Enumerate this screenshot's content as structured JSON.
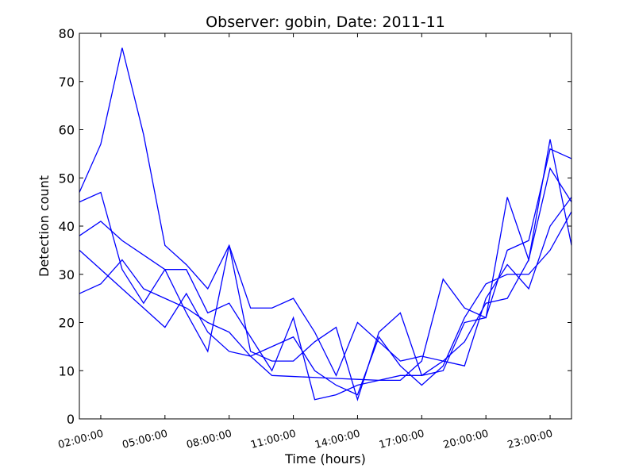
{
  "chart_data": {
    "type": "line",
    "title": "Observer: gobin, Date: 2011-11",
    "xlabel": "Time (hours)",
    "ylabel": "Detection count",
    "xlim": [
      "01:00:00",
      "24:00:00"
    ],
    "ylim": [
      0,
      80
    ],
    "yticks": [
      0,
      10,
      20,
      30,
      40,
      50,
      60,
      70,
      80
    ],
    "xticks": [
      "02:00:00",
      "05:00:00",
      "08:00:00",
      "11:00:00",
      "14:00:00",
      "17:00:00",
      "20:00:00",
      "23:00:00"
    ],
    "grid": false,
    "line_color": "#0000ff",
    "x": [
      "01:00:00",
      "02:00:00",
      "03:00:00",
      "04:00:00",
      "05:00:00",
      "06:00:00",
      "07:00:00",
      "08:00:00",
      "09:00:00",
      "10:00:00",
      "11:00:00",
      "12:00:00",
      "13:00:00",
      "14:00:00",
      "15:00:00",
      "16:00:00",
      "17:00:00",
      "18:00:00",
      "19:00:00",
      "20:00:00",
      "21:00:00",
      "22:00:00",
      "23:00:00",
      "24:00:00"
    ],
    "series": [
      {
        "values": [
          47,
          57,
          77,
          59,
          36,
          32,
          27,
          36,
          23,
          23,
          25,
          18,
          9,
          20,
          16,
          12,
          13,
          12,
          16,
          24,
          25,
          33,
          58,
          36
        ]
      },
      {
        "values": [
          45,
          47,
          31,
          24,
          31,
          31,
          22,
          24,
          17,
          10,
          21,
          4,
          5,
          7,
          8,
          8,
          12,
          29,
          23,
          21,
          46,
          33,
          52,
          45
        ]
      },
      {
        "values": [
          38,
          41,
          37,
          34,
          31,
          22,
          14,
          36,
          14,
          12,
          12,
          16,
          19,
          4,
          18,
          22,
          9,
          10,
          20,
          21,
          35,
          37,
          56,
          54
        ]
      },
      {
        "values": [
          35,
          31,
          27,
          23,
          19,
          26,
          18,
          14,
          13,
          9,
          8.8,
          8.6,
          8.4,
          8.2,
          8,
          9,
          9,
          12,
          11,
          25,
          32,
          27,
          40,
          46
        ]
      },
      {
        "values": [
          26,
          28,
          33,
          27,
          25,
          23,
          20,
          18,
          13,
          15,
          17,
          10,
          7,
          5,
          17,
          11,
          7,
          11,
          21,
          28,
          30,
          30,
          35,
          43
        ]
      }
    ]
  }
}
